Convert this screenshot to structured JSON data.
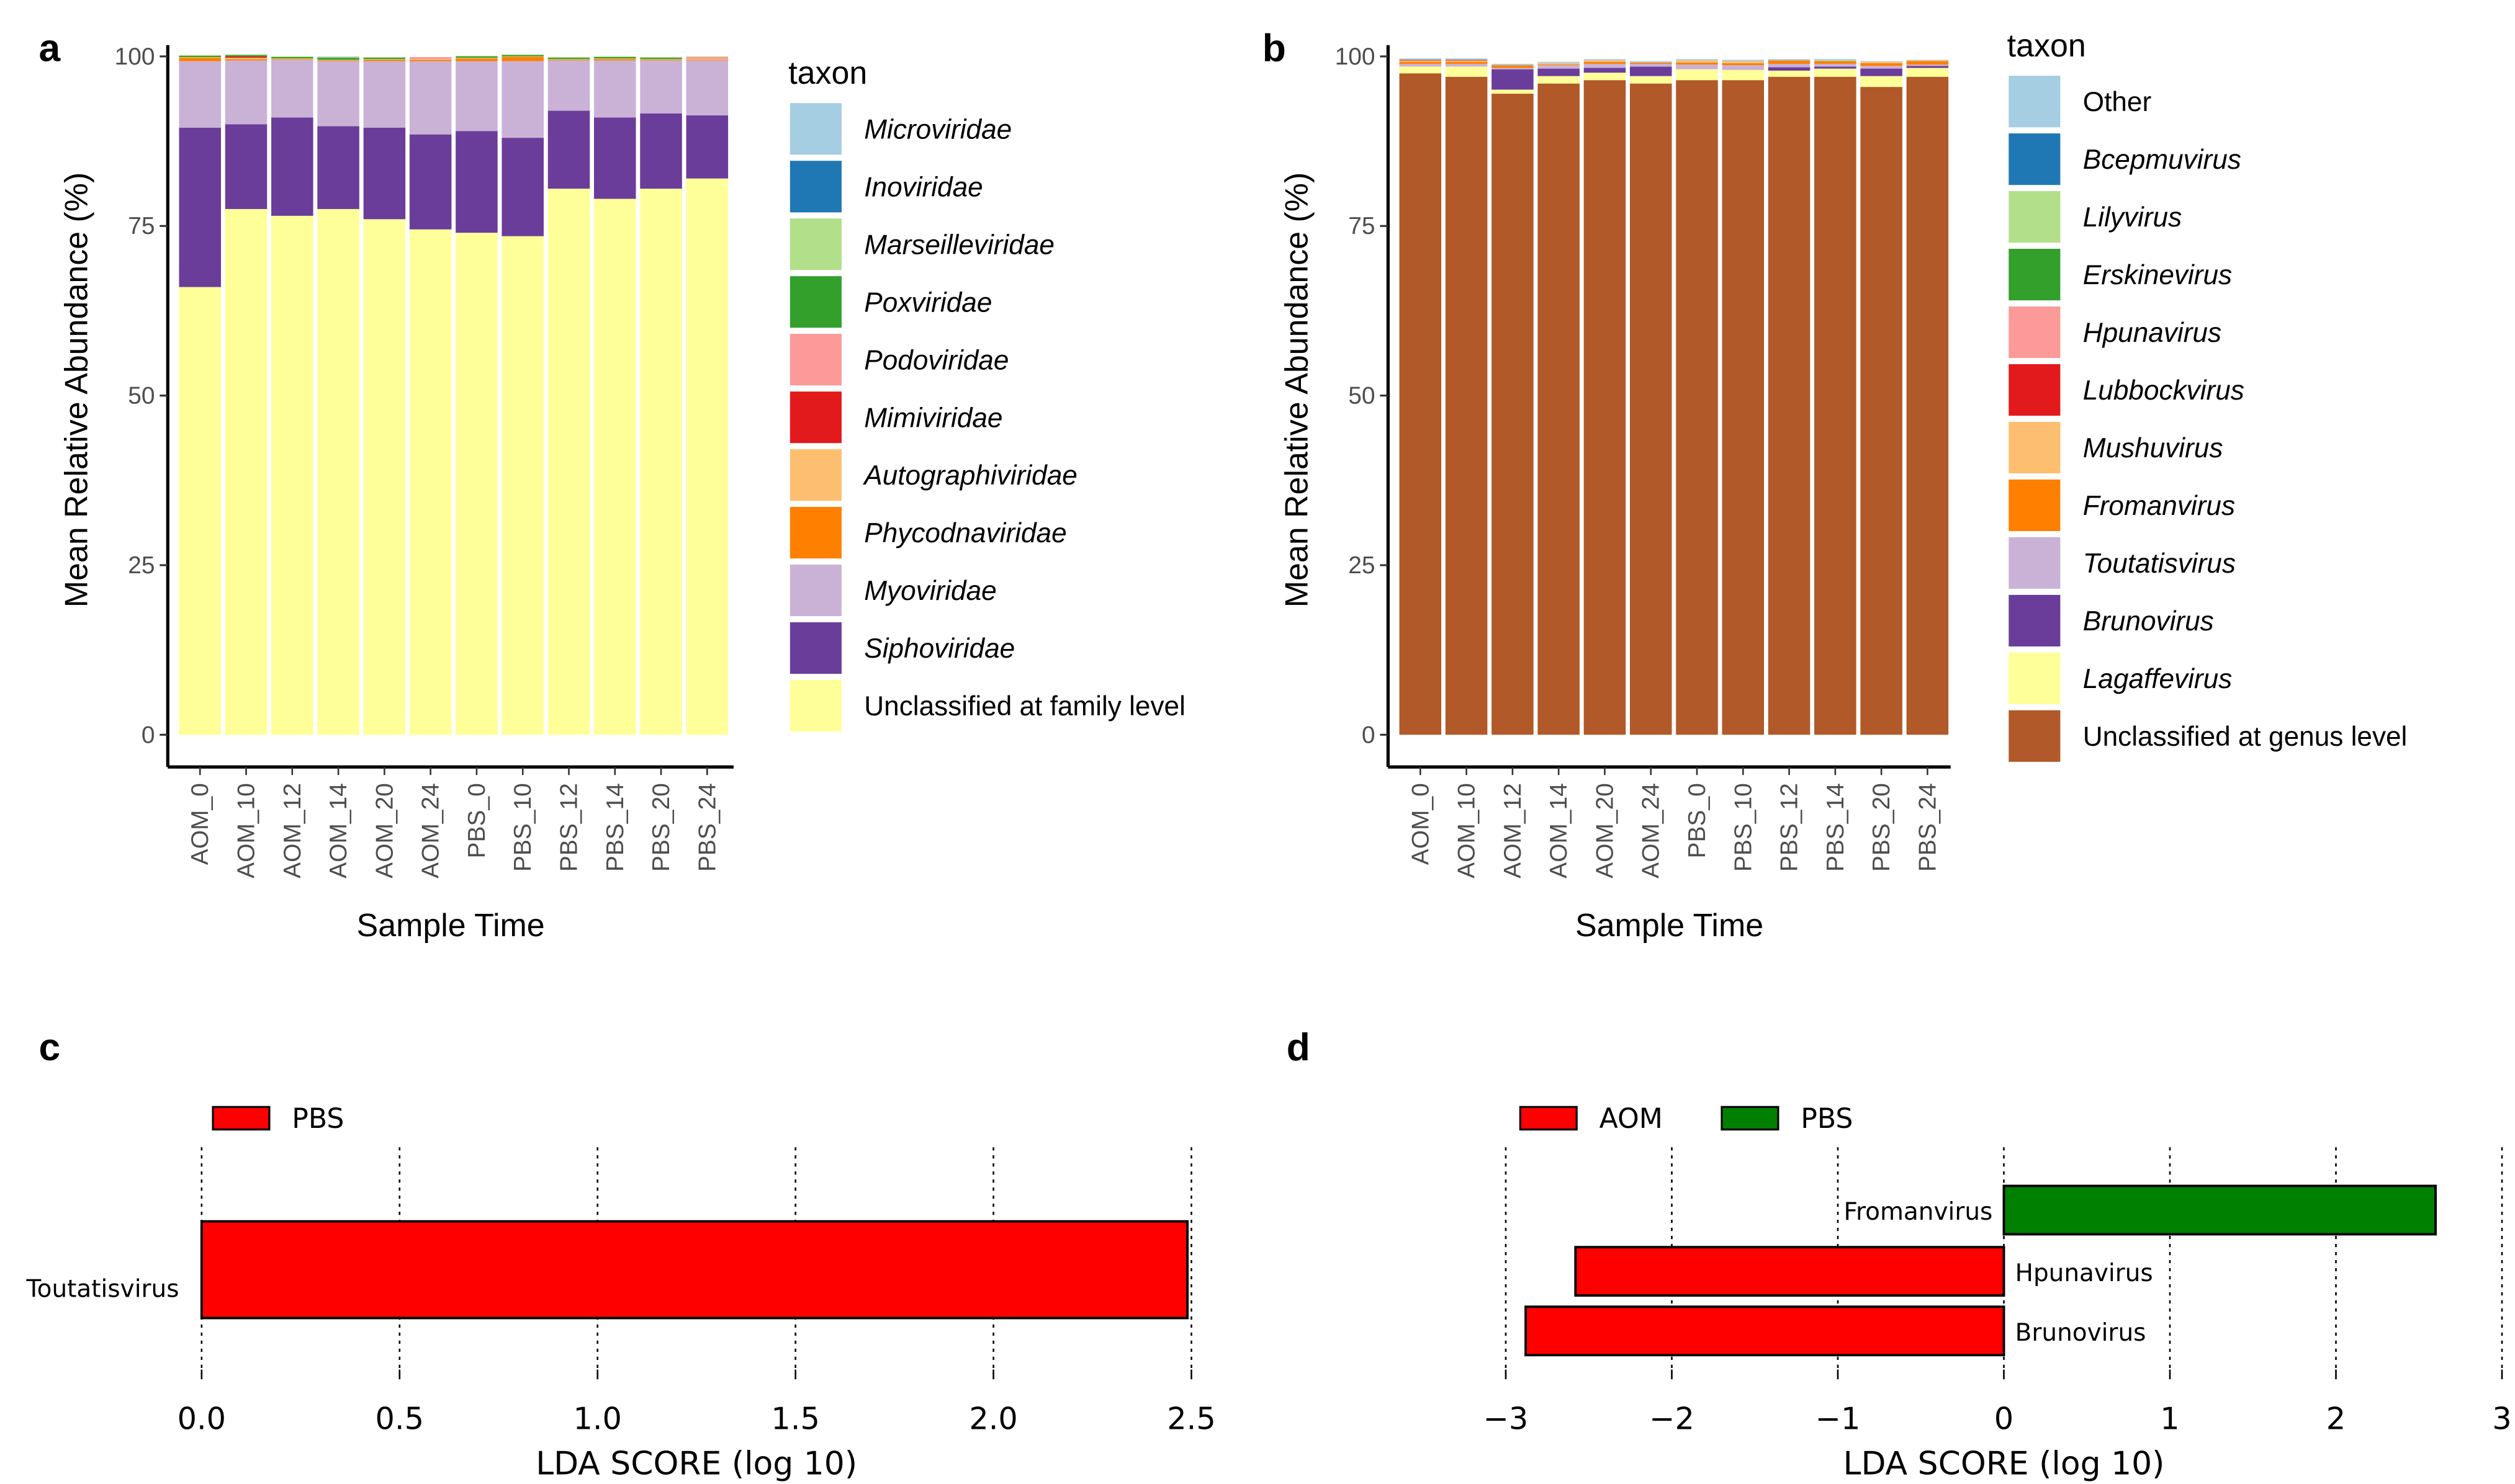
{
  "chart_data": [
    {
      "panel": "a",
      "type": "bar",
      "stacked": true,
      "xlabel": "Sample Time",
      "ylabel": "Mean Relative Abundance (%)",
      "ylim": [
        0,
        100
      ],
      "yticks": [
        0,
        25,
        50,
        75,
        100
      ],
      "categories": [
        "AOM_0",
        "AOM_10",
        "AOM_12",
        "AOM_14",
        "AOM_20",
        "AOM_24",
        "PBS_0",
        "PBS_10",
        "PBS_12",
        "PBS_14",
        "PBS_20",
        "PBS_24"
      ],
      "legend_title": "taxon",
      "legend_placement": "right",
      "series": [
        {
          "name": "Microviridae",
          "color": "#A6CEE3",
          "values": [
            0,
            0,
            0,
            0.1,
            0,
            0,
            0,
            0,
            0,
            0,
            0,
            0
          ]
        },
        {
          "name": "Inoviridae",
          "color": "#1F78B4",
          "values": [
            0,
            0,
            0,
            0,
            0,
            0,
            0,
            0,
            0,
            0,
            0,
            0
          ]
        },
        {
          "name": "Marseilleviridae",
          "color": "#B2DF8A",
          "values": [
            0.1,
            0.1,
            0.1,
            0.1,
            0.1,
            0,
            0.1,
            0.1,
            0.1,
            0.1,
            0.1,
            0.1
          ]
        },
        {
          "name": "Poxviridae",
          "color": "#33A02C",
          "values": [
            0.2,
            0.2,
            0.2,
            0.3,
            0.2,
            0,
            0.2,
            0.2,
            0.2,
            0.2,
            0.2,
            0
          ]
        },
        {
          "name": "Podoviridae",
          "color": "#FB9A99",
          "values": [
            0,
            0,
            0,
            0,
            0,
            0.3,
            0,
            0,
            0,
            0,
            0,
            0.3
          ]
        },
        {
          "name": "Mimiviridae",
          "color": "#E31A1C",
          "values": [
            0,
            0.2,
            0,
            0,
            0,
            0,
            0,
            0,
            0,
            0,
            0,
            0
          ]
        },
        {
          "name": "Autographiviridae",
          "color": "#FDBF6F",
          "values": [
            0.1,
            0.2,
            0.1,
            0.1,
            0.1,
            0.1,
            0.1,
            0.1,
            0.1,
            0.1,
            0.1,
            0.1
          ]
        },
        {
          "name": "Phycodnaviridae",
          "color": "#FF7F00",
          "values": [
            0.5,
            0.2,
            0.1,
            0.1,
            0.2,
            0.2,
            0.4,
            0.6,
            0.1,
            0.2,
            0.1,
            0.1
          ]
        },
        {
          "name": "Myoviridae",
          "color": "#CAB2D6",
          "values": [
            9.8,
            9.4,
            8.5,
            9.6,
            9.8,
            10.8,
            10.3,
            11.3,
            7.4,
            8.4,
            7.8,
            8.1
          ]
        },
        {
          "name": "Siphoviridae",
          "color": "#6A3D9A",
          "values": [
            23.5,
            12.5,
            14.5,
            12.2,
            13.5,
            14,
            15,
            14.5,
            11.5,
            12,
            11.1,
            9.3
          ]
        },
        {
          "name": "Unclassified at family level",
          "color": "#FFFF99",
          "values": [
            66,
            77.5,
            76.5,
            77.5,
            76,
            74.5,
            74,
            73.5,
            80.5,
            79,
            80.5,
            82
          ]
        }
      ]
    },
    {
      "panel": "b",
      "type": "bar",
      "stacked": true,
      "xlabel": "Sample Time",
      "ylabel": "Mean Relative Abundance (%)",
      "ylim": [
        0,
        100
      ],
      "yticks": [
        0,
        25,
        50,
        75,
        100
      ],
      "categories": [
        "AOM_0",
        "AOM_10",
        "AOM_12",
        "AOM_14",
        "AOM_20",
        "AOM_24",
        "PBS_0",
        "PBS_10",
        "PBS_12",
        "PBS_14",
        "PBS_20",
        "PBS_24"
      ],
      "legend_title": "taxon",
      "legend_placement": "right",
      "series": [
        {
          "name": "Other",
          "color": "#A6CEE3",
          "values": [
            0.2,
            0.2,
            0.2,
            0.2,
            0.2,
            0.2,
            0.2,
            0.2,
            0.2,
            0.2,
            0.1,
            0.1
          ]
        },
        {
          "name": "Bcepmuvirus",
          "color": "#1F78B4",
          "values": [
            0,
            0,
            0,
            0,
            0,
            0,
            0,
            0,
            0,
            0,
            0,
            0
          ]
        },
        {
          "name": "Lilyvirus",
          "color": "#B2DF8A",
          "values": [
            0,
            0,
            0,
            0,
            0,
            0,
            0,
            0,
            0,
            0.1,
            0,
            0
          ]
        },
        {
          "name": "Erskinevirus",
          "color": "#33A02C",
          "values": [
            0,
            0,
            0,
            0,
            0,
            0,
            0,
            0,
            0,
            0,
            0,
            0
          ]
        },
        {
          "name": "Hpunavirus",
          "color": "#FB9A99",
          "values": [
            0,
            0,
            0,
            0,
            0,
            0,
            0,
            0,
            0,
            0,
            0,
            0
          ]
        },
        {
          "name": "Lubbockvirus",
          "color": "#E31A1C",
          "values": [
            0.1,
            0.1,
            0,
            0,
            0,
            0,
            0,
            0,
            0,
            0,
            0,
            0
          ]
        },
        {
          "name": "Mushuvirus",
          "color": "#FDBF6F",
          "values": [
            0.2,
            0.2,
            0,
            0.2,
            0.2,
            0,
            0.3,
            0.3,
            0,
            0,
            0.2,
            0.1
          ]
        },
        {
          "name": "Fromanvirus",
          "color": "#FF7F00",
          "values": [
            0.3,
            0.3,
            0.4,
            0.1,
            0.3,
            0.2,
            0.3,
            0.3,
            0.5,
            0.4,
            0.4,
            0.5
          ]
        },
        {
          "name": "Toutatisvirus",
          "color": "#CAB2D6",
          "values": [
            0.4,
            0.4,
            0.2,
            0.5,
            0.6,
            0.4,
            0.7,
            0.7,
            0.5,
            0.4,
            0.4,
            0.2
          ]
        },
        {
          "name": "Brunovirus",
          "color": "#6A3D9A",
          "values": [
            0,
            0,
            3,
            1.1,
            0.7,
            1.4,
            0,
            0,
            0.5,
            0.3,
            1.1,
            0.3
          ]
        },
        {
          "name": "Lagaffevirus",
          "color": "#FFFF99",
          "values": [
            1,
            1.5,
            0.6,
            1.1,
            1.1,
            1.1,
            1.6,
            1.5,
            0.9,
            1.2,
            1.6,
            1.3
          ]
        },
        {
          "name": "Unclassified at genus level",
          "color": "#B15928",
          "values": [
            97.5,
            97,
            94.5,
            96,
            96.5,
            96,
            96.5,
            96.5,
            97,
            97,
            95.5,
            97
          ]
        }
      ]
    },
    {
      "panel": "c",
      "type": "bar",
      "orientation": "horizontal",
      "xlabel": "LDA SCORE (log 10)",
      "xlim": [
        0,
        2.5
      ],
      "xticks": [
        "0.0",
        "0.5",
        "1.0",
        "1.5",
        "2.0",
        "2.5"
      ],
      "grid": "vertical dotted",
      "legend_placement": "top-left",
      "legend": [
        {
          "name": "PBS",
          "color": "#FF0000"
        }
      ],
      "bars": [
        {
          "label": "Toutatisvirus",
          "value": 2.49,
          "group": "PBS",
          "color": "#FF0000"
        }
      ]
    },
    {
      "panel": "d",
      "type": "bar",
      "orientation": "horizontal",
      "xlabel": "LDA SCORE (log 10)",
      "xlim": [
        -3,
        3
      ],
      "xticks": [
        "−3",
        "−2",
        "−1",
        "0",
        "1",
        "2",
        "3"
      ],
      "grid": "vertical dotted",
      "legend_placement": "top-left",
      "legend": [
        {
          "name": "AOM",
          "color": "#FF0000"
        },
        {
          "name": "PBS",
          "color": "#008000"
        }
      ],
      "bars": [
        {
          "label": "Fromanvirus",
          "value": 2.6,
          "group": "PBS",
          "color": "#008000"
        },
        {
          "label": "Hpunavirus",
          "value": -2.58,
          "group": "AOM",
          "color": "#FF0000"
        },
        {
          "label": "Brunovirus",
          "value": -2.88,
          "group": "AOM",
          "color": "#FF0000"
        }
      ]
    }
  ],
  "panel_letters": [
    "a",
    "b",
    "c",
    "d"
  ]
}
